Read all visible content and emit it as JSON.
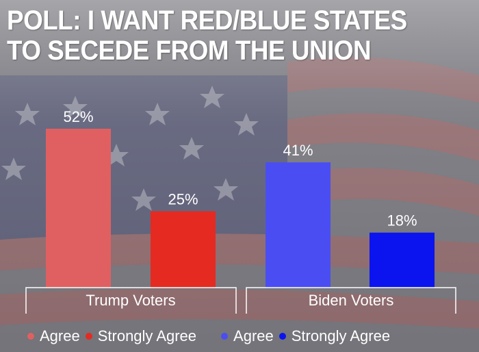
{
  "title_line1": "POLL: I WANT RED/BLUE STATES",
  "title_line2": "TO SECEDE FROM THE UNION",
  "colors": {
    "trump_agree": "#e06062",
    "trump_strong": "#e52a22",
    "biden_agree": "#4a4ef2",
    "biden_strong": "#0b14ee"
  },
  "chart_data": {
    "type": "bar",
    "categories": [
      "Trump Voters",
      "Biden Voters"
    ],
    "bars": [
      {
        "group": "Trump Voters",
        "series": "Agree",
        "value": 52,
        "label": "52%",
        "color": "#e06062"
      },
      {
        "group": "Trump Voters",
        "series": "Strongly Agree",
        "value": 25,
        "label": "25%",
        "color": "#e52a22"
      },
      {
        "group": "Biden Voters",
        "series": "Agree",
        "value": 41,
        "label": "41%",
        "color": "#4a4ef2"
      },
      {
        "group": "Biden Voters",
        "series": "Strongly Agree",
        "value": 18,
        "label": "18%",
        "color": "#0b14ee"
      }
    ],
    "title": "POLL: I WANT RED/BLUE STATES TO SECEDE FROM THE UNION",
    "ylim": [
      0,
      52
    ],
    "legend": [
      {
        "label": "Agree",
        "color": "#e06062"
      },
      {
        "label": "Strongly Agree",
        "color": "#e52a22"
      },
      {
        "label": "Agree",
        "color": "#4a4ef2"
      },
      {
        "label": "Strongly Agree",
        "color": "#0b14ee"
      }
    ],
    "legend_position": "bottom"
  }
}
